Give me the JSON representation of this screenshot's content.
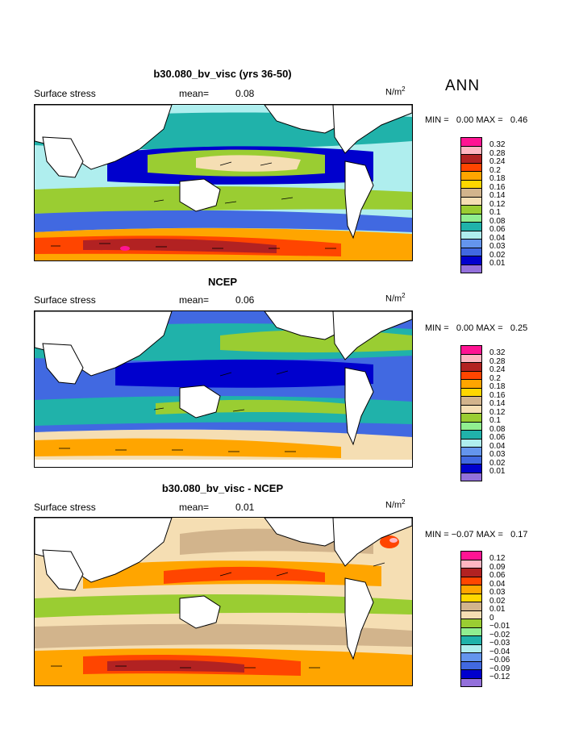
{
  "season_label": "ANN",
  "panels": [
    {
      "title": "b30.080_bv_visc (yrs 36-50)",
      "field": "Surface stress",
      "mean_label": "mean=",
      "mean_value": "0.08",
      "units": "N/m",
      "units_exp": "2",
      "min_label": "MIN =",
      "min_value": "0.00",
      "max_label": "MAX =",
      "max_value": "0.46",
      "legend": [
        {
          "label": "0.32",
          "color": "#ff1493"
        },
        {
          "label": "0.28",
          "color": "#ffb6c1"
        },
        {
          "label": "0.24",
          "color": "#b22222"
        },
        {
          "label": "0.2",
          "color": "#ff4500"
        },
        {
          "label": "0.18",
          "color": "#ffa500"
        },
        {
          "label": "0.16",
          "color": "#ffd700"
        },
        {
          "label": "0.14",
          "color": "#d2b48c"
        },
        {
          "label": "0.12",
          "color": "#f5deb3"
        },
        {
          "label": "0.1",
          "color": "#9acd32"
        },
        {
          "label": "0.08",
          "color": "#90ee90"
        },
        {
          "label": "0.06",
          "color": "#20b2aa"
        },
        {
          "label": "0.04",
          "color": "#afeeee"
        },
        {
          "label": "0.03",
          "color": "#6495ed"
        },
        {
          "label": "0.02",
          "color": "#4169e1"
        },
        {
          "label": "0.01",
          "color": "#0000cd"
        },
        {
          "label": "",
          "color": "#9370db"
        }
      ]
    },
    {
      "title": "NCEP",
      "field": "Surface stress",
      "mean_label": "mean=",
      "mean_value": "0.06",
      "units": "N/m",
      "units_exp": "2",
      "min_label": "MIN =",
      "min_value": "0.00",
      "max_label": "MAX =",
      "max_value": "0.25",
      "legend": [
        {
          "label": "0.32",
          "color": "#ff1493"
        },
        {
          "label": "0.28",
          "color": "#ffb6c1"
        },
        {
          "label": "0.24",
          "color": "#b22222"
        },
        {
          "label": "0.2",
          "color": "#ff4500"
        },
        {
          "label": "0.18",
          "color": "#ffa500"
        },
        {
          "label": "0.16",
          "color": "#ffd700"
        },
        {
          "label": "0.14",
          "color": "#d2b48c"
        },
        {
          "label": "0.12",
          "color": "#f5deb3"
        },
        {
          "label": "0.1",
          "color": "#9acd32"
        },
        {
          "label": "0.08",
          "color": "#90ee90"
        },
        {
          "label": "0.06",
          "color": "#20b2aa"
        },
        {
          "label": "0.04",
          "color": "#afeeee"
        },
        {
          "label": "0.03",
          "color": "#6495ed"
        },
        {
          "label": "0.02",
          "color": "#4169e1"
        },
        {
          "label": "0.01",
          "color": "#0000cd"
        },
        {
          "label": "",
          "color": "#9370db"
        }
      ]
    },
    {
      "title": "b30.080_bv_visc - NCEP",
      "field": "Surface stress",
      "mean_label": "mean=",
      "mean_value": "0.01",
      "units": "N/m",
      "units_exp": "2",
      "min_label": "MIN =",
      "min_value": "−0.07",
      "max_label": "MAX =",
      "max_value": "0.17",
      "legend": [
        {
          "label": "0.12",
          "color": "#ff1493"
        },
        {
          "label": "0.09",
          "color": "#ffb6c1"
        },
        {
          "label": "0.06",
          "color": "#b22222"
        },
        {
          "label": "0.04",
          "color": "#ff4500"
        },
        {
          "label": "0.03",
          "color": "#ffa500"
        },
        {
          "label": "0.02",
          "color": "#ffd700"
        },
        {
          "label": "0.01",
          "color": "#d2b48c"
        },
        {
          "label": "0",
          "color": "#f5deb3"
        },
        {
          "label": "−0.01",
          "color": "#9acd32"
        },
        {
          "label": "−0.02",
          "color": "#90ee90"
        },
        {
          "label": "−0.03",
          "color": "#20b2aa"
        },
        {
          "label": "−0.04",
          "color": "#afeeee"
        },
        {
          "label": "−0.06",
          "color": "#6495ed"
        },
        {
          "label": "−0.09",
          "color": "#4169e1"
        },
        {
          "label": "−0.12",
          "color": "#0000cd"
        },
        {
          "label": "",
          "color": "#9370db"
        }
      ]
    }
  ]
}
